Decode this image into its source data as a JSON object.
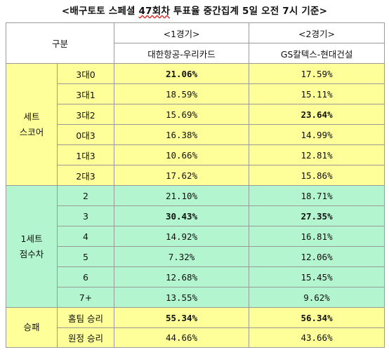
{
  "title_before": "<배구토토 스페셜 ",
  "title_highlight": "47회차",
  "title_after": " 투표율 중간집계 5일 오전 7시 기준>",
  "header": {
    "category": "구분",
    "game1_no": "<1경기>",
    "game1_teams": "대한항공-우리카드",
    "game2_no": "<2경기>",
    "game2_teams": "GS칼텍스-현대건설"
  },
  "groups": {
    "set_score": "세트\n스코어",
    "point_diff": "1세트\n점수차",
    "win_loss": "승패"
  },
  "set_score_rows": [
    {
      "label": "3대0",
      "g1": "21.06%",
      "g2": "17.59%",
      "g1_bold": true,
      "g2_bold": false
    },
    {
      "label": "3대1",
      "g1": "18.59%",
      "g2": "15.11%",
      "g1_bold": false,
      "g2_bold": false
    },
    {
      "label": "3대2",
      "g1": "15.69%",
      "g2": "23.64%",
      "g1_bold": false,
      "g2_bold": true
    },
    {
      "label": "0대3",
      "g1": "16.38%",
      "g2": "14.99%",
      "g1_bold": false,
      "g2_bold": false
    },
    {
      "label": "1대3",
      "g1": "10.66%",
      "g2": "12.81%",
      "g1_bold": false,
      "g2_bold": false
    },
    {
      "label": "2대3",
      "g1": "17.62%",
      "g2": "15.86%",
      "g1_bold": false,
      "g2_bold": false
    }
  ],
  "point_diff_rows": [
    {
      "label": "2",
      "g1": "21.10%",
      "g2": "18.71%",
      "g1_bold": false,
      "g2_bold": false
    },
    {
      "label": "3",
      "g1": "30.43%",
      "g2": "27.35%",
      "g1_bold": true,
      "g2_bold": true
    },
    {
      "label": "4",
      "g1": "14.92%",
      "g2": "16.81%",
      "g1_bold": false,
      "g2_bold": false
    },
    {
      "label": "5",
      "g1": "7.32%",
      "g2": "12.06%",
      "g1_bold": false,
      "g2_bold": false
    },
    {
      "label": "6",
      "g1": "12.68%",
      "g2": "15.45%",
      "g1_bold": false,
      "g2_bold": false
    },
    {
      "label": "7+",
      "g1": "13.55%",
      "g2": "9.62%",
      "g1_bold": false,
      "g2_bold": false
    }
  ],
  "win_loss_rows": [
    {
      "label": "홈팀 승리",
      "g1": "55.34%",
      "g2": "56.34%",
      "g1_bold": true,
      "g2_bold": true
    },
    {
      "label": "원정 승리",
      "g1": "44.66%",
      "g2": "43.66%",
      "g1_bold": false,
      "g2_bold": false
    }
  ],
  "colors": {
    "set_score_bg": "#ffff99",
    "point_diff_bg": "#b3f5cf",
    "win_loss_bg": "#ffff99"
  }
}
